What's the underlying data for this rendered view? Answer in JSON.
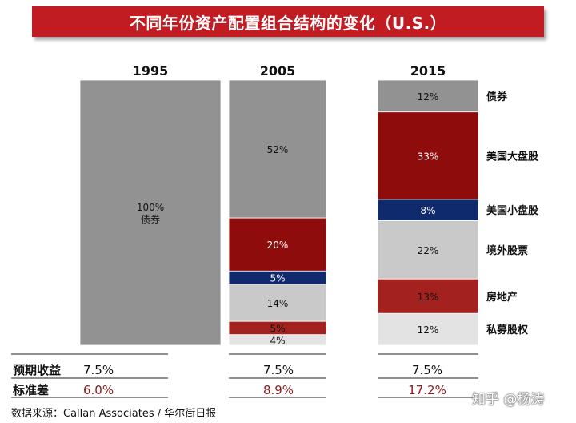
{
  "title": "不同年份资产配置组合结构的变化（U.S.）",
  "chart_data": {
    "type": "bar",
    "stacked": true,
    "categories": [
      "1995",
      "2005",
      "2015"
    ],
    "series": [
      {
        "name": "债券",
        "color": "#929292",
        "values": [
          100,
          52,
          12
        ],
        "labels": [
          "100%\n债券",
          "52%",
          "12%"
        ],
        "text_color": "#111111"
      },
      {
        "name": "美国大盘股",
        "color": "#8f0c0c",
        "values": [
          0,
          20,
          33
        ],
        "labels": [
          "",
          "20%",
          "33%"
        ],
        "text_color": "#ffffff"
      },
      {
        "name": "美国小盘股",
        "color": "#102a6e",
        "values": [
          0,
          5,
          8
        ],
        "labels": [
          "",
          "5%",
          "8%"
        ],
        "text_color": "#ffffff"
      },
      {
        "name": "境外股票",
        "color": "#c9c9c9",
        "values": [
          0,
          14,
          22
        ],
        "labels": [
          "",
          "14%",
          "22%"
        ],
        "text_color": "#111111"
      },
      {
        "name": "房地产",
        "color": "#a3221f",
        "values": [
          0,
          5,
          13
        ],
        "labels": [
          "",
          "5%",
          "13%"
        ],
        "text_color": "#111111"
      },
      {
        "name": "私募股权",
        "color": "#e3e3e3",
        "values": [
          0,
          4,
          12
        ],
        "labels": [
          "",
          "4%",
          "12%"
        ],
        "text_color": "#111111"
      }
    ],
    "legend_position": "right",
    "metrics": [
      {
        "label": "预期收益",
        "values": [
          "7.5%",
          "7.5%",
          "7.5%"
        ],
        "color": "#111111"
      },
      {
        "label": "标准差",
        "values": [
          "6.0%",
          "8.9%",
          "17.2%"
        ],
        "color": "#8b1a1a"
      }
    ]
  },
  "source": "数据来源：Callan Associates / 华尔街日报",
  "watermark": "知乎 @杨涛"
}
